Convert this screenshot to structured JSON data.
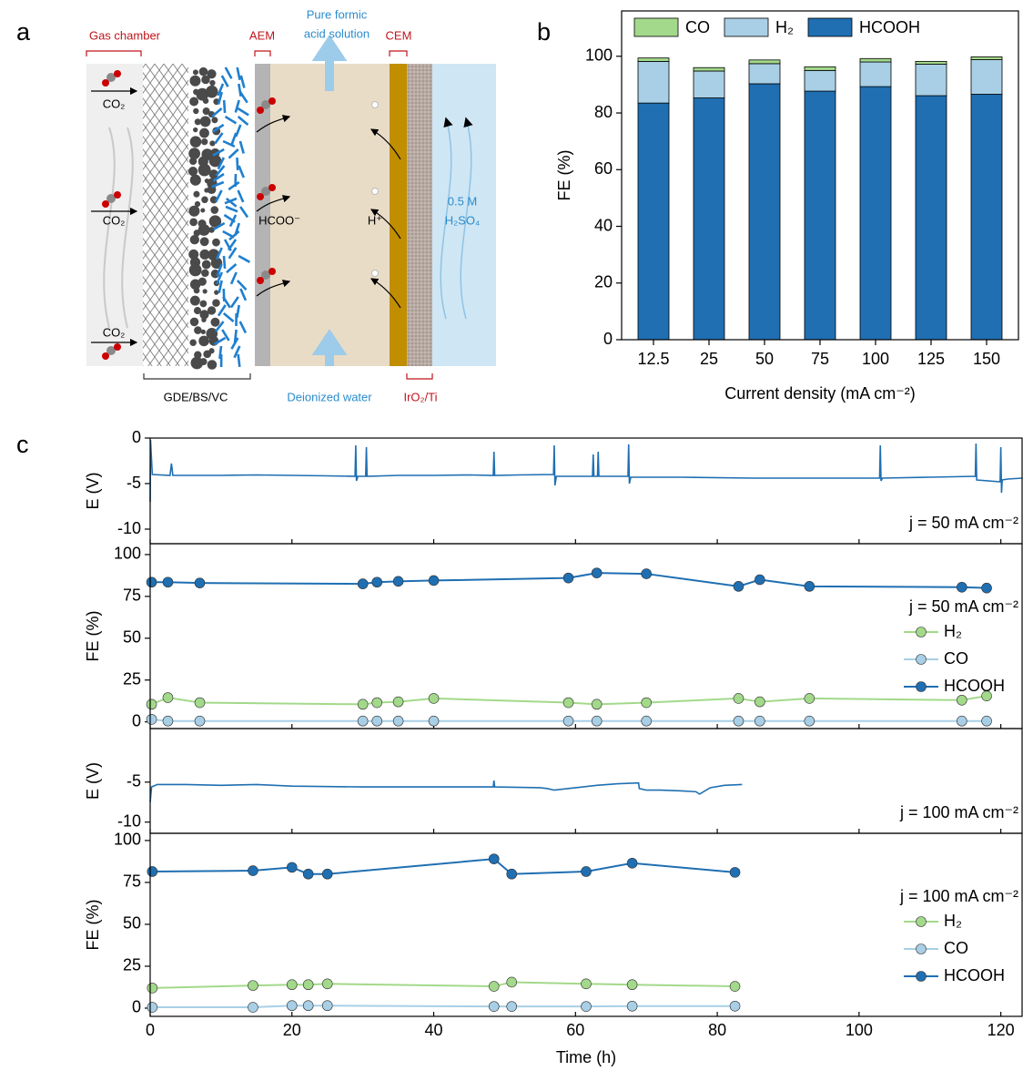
{
  "panel_labels": [
    "a",
    "b",
    "c"
  ],
  "diagram": {
    "gas_chamber": "Gas chamber",
    "aem": "AEM",
    "product": [
      "Pure formic",
      "acid solution"
    ],
    "cem": "CEM",
    "co2": [
      "CO₂",
      "CO₂",
      "CO₂"
    ],
    "anion": "HCOO⁻",
    "proton": "H⁺",
    "electrolyte": [
      "0.5 M",
      "H₂SO₄"
    ],
    "cathode": "GDE/BS/VC",
    "feed": "Deionized water",
    "anode": "IrO₂/Ti"
  },
  "chart_data": [
    {
      "type": "bar",
      "stacked": true,
      "xlabel": "Current density (mA cm⁻²)",
      "ylabel": "FE (%)",
      "categories": [
        "12.5",
        "25",
        "50",
        "75",
        "100",
        "125",
        "150"
      ],
      "series": [
        {
          "name": "HCOOH",
          "color": "#1f6fb2",
          "values": [
            83.5,
            85.3,
            90.3,
            87.7,
            89.3,
            86.1,
            86.6
          ]
        },
        {
          "name": "H₂",
          "color": "#a8cfe6",
          "values": [
            14.7,
            9.5,
            7.1,
            7.3,
            8.7,
            11.1,
            12.2
          ]
        },
        {
          "name": "CO",
          "color": "#a3d98a",
          "values": [
            1.2,
            1.2,
            1.3,
            1.3,
            1.2,
            1.0,
            1.0
          ]
        }
      ],
      "ylim": [
        0,
        116
      ],
      "yticks": [
        0,
        20,
        40,
        60,
        80,
        100
      ],
      "legend": "top"
    },
    {
      "type": "line",
      "ylabel": "E (V)",
      "annotation": "j = 50 mA cm⁻²",
      "color": "#1f6fb2",
      "x": [
        0,
        0.05,
        0.3,
        2.8,
        3,
        3.2,
        5,
        10,
        15,
        20,
        25,
        28.9,
        29,
        29.1,
        29.3,
        30.4,
        30.5,
        30.6,
        35,
        40,
        45,
        48.4,
        48.5,
        48.6,
        52,
        56.9,
        57,
        57.1,
        57.3,
        60,
        62.4,
        62.5,
        62.6,
        63.1,
        63.2,
        63.3,
        67.4,
        67.5,
        67.6,
        67.8,
        75,
        85,
        95,
        102.9,
        103,
        103.1,
        103.3,
        110,
        116.4,
        116.5,
        116.6,
        119.9,
        120,
        120.1,
        120.2,
        121,
        123
      ],
      "values": [
        -7,
        -0.2,
        -4,
        -4.1,
        -2.8,
        -4.1,
        -4.1,
        -4.1,
        -4.05,
        -4.1,
        -4.15,
        -4.2,
        -0.8,
        -4.7,
        -4.2,
        -4.2,
        -1,
        -4.2,
        -4.1,
        -4.1,
        -4.05,
        -4.1,
        -1.5,
        -4.1,
        -4.05,
        -4,
        -0.8,
        -5.2,
        -4.2,
        -4.2,
        -4.2,
        -1.8,
        -4.2,
        -4.2,
        -1.5,
        -4.2,
        -4.2,
        -0.7,
        -5,
        -4.3,
        -4.3,
        -4.4,
        -4.4,
        -4.4,
        -0.8,
        -4.7,
        -4.4,
        -4.3,
        -4.2,
        -0.6,
        -4.6,
        -4.8,
        -1,
        -6,
        -4.6,
        -4.5,
        -4.4
      ],
      "xlim": [
        0,
        123
      ],
      "ylim": [
        -11.6,
        0
      ],
      "yticks": [
        0,
        -5,
        -10
      ]
    },
    {
      "type": "line",
      "markers": true,
      "ylabel": "FE (%)",
      "annotation": "j = 50 mA cm⁻²",
      "legend": "right",
      "x": [
        0.2,
        2.5,
        7,
        30,
        32,
        35,
        40,
        59,
        63,
        70,
        83,
        86,
        93,
        114.5,
        118
      ],
      "series": [
        {
          "name": "H₂",
          "color": "#a3d98a",
          "values": [
            10.5,
            14.5,
            11.5,
            10.5,
            11.5,
            12,
            14,
            11.5,
            10.5,
            11.5,
            14,
            12,
            14,
            13,
            15.5
          ]
        },
        {
          "name": "CO",
          "color": "#a8cfe6",
          "values": [
            1.5,
            0.5,
            0.5,
            0.5,
            0.5,
            0.5,
            0.5,
            0.5,
            0.5,
            0.5,
            0.5,
            0.5,
            0.5,
            0.5,
            0.5
          ]
        },
        {
          "name": "HCOOH",
          "color": "#1f6fb2",
          "values": [
            83.5,
            83.5,
            83,
            82.5,
            83.5,
            84,
            84.5,
            86,
            89,
            88.5,
            81,
            85,
            81,
            80.5,
            80
          ]
        }
      ],
      "xlim": [
        0,
        123
      ],
      "ylim": [
        -4,
        106.5
      ],
      "yticks": [
        0,
        25,
        50,
        75,
        100
      ]
    },
    {
      "type": "line",
      "ylabel": "E (V)",
      "annotation": "j = 100 mA cm⁻²",
      "color": "#1f6fb2",
      "x": [
        0,
        0.2,
        1,
        5,
        10,
        15,
        20,
        30,
        40,
        48.4,
        48.5,
        48.6,
        55,
        56,
        57,
        60,
        63,
        66,
        68.9,
        69,
        70,
        72,
        75,
        77,
        77.5,
        79,
        81,
        83.5
      ],
      "values": [
        -7.5,
        -5.6,
        -5.3,
        -5.3,
        -5.4,
        -5.3,
        -5.5,
        -5.6,
        -5.6,
        -5.6,
        -4.8,
        -5.6,
        -5.7,
        -5.8,
        -6,
        -5.7,
        -5.4,
        -5.2,
        -5.1,
        -5.8,
        -6,
        -6,
        -6.1,
        -6.2,
        -6.5,
        -5.7,
        -5.4,
        -5.3
      ],
      "xlim": [
        0,
        123
      ],
      "ylim": [
        -11.4,
        1.7
      ],
      "yticks": [
        -5,
        -10
      ]
    },
    {
      "type": "line",
      "markers": true,
      "ylabel": "FE (%)",
      "annotation": "j = 100 mA cm⁻²",
      "legend": "right",
      "xlabel": "Time (h)",
      "x": [
        0.3,
        14.5,
        20,
        22.3,
        25,
        48.5,
        51,
        61.5,
        68,
        82.5
      ],
      "series": [
        {
          "name": "H₂",
          "color": "#a3d98a",
          "values": [
            12,
            13.5,
            14,
            14,
            14.5,
            13,
            15.5,
            14.5,
            14,
            13
          ]
        },
        {
          "name": "CO",
          "color": "#a8cfe6",
          "values": [
            0.5,
            0.5,
            1.5,
            1.5,
            1.5,
            1,
            1,
            1,
            1.2,
            1.2
          ]
        },
        {
          "name": "HCOOH",
          "color": "#1f6fb2",
          "values": [
            81.5,
            82,
            84,
            80,
            80,
            89,
            80,
            81.5,
            86.5,
            81
          ]
        }
      ],
      "xlim": [
        0,
        123
      ],
      "ylim": [
        -4.9,
        104.3
      ],
      "xticks": [
        0,
        20,
        40,
        60,
        80,
        100,
        120
      ],
      "yticks": [
        0,
        25,
        50,
        75,
        100
      ]
    }
  ]
}
